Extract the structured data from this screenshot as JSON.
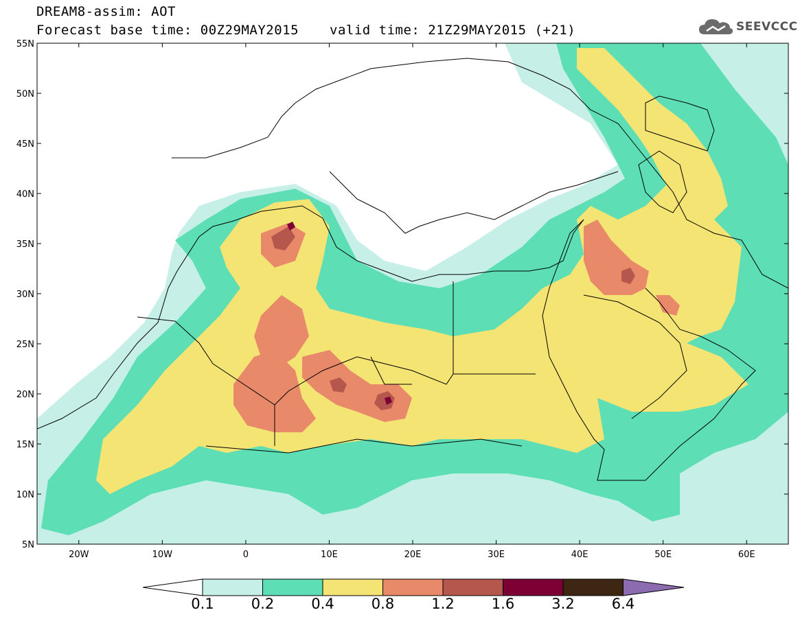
{
  "title": {
    "line1": "DREAM8-assim: AOT",
    "line2": "Forecast base time: 00Z29MAY2015",
    "valid": "valid time: 21Z29MAY2015 (+21)"
  },
  "logo": {
    "text": "SEEVCCC",
    "icon": "cloud-icon"
  },
  "map": {
    "lon_range": [
      -25,
      65
    ],
    "lat_range": [
      5,
      55
    ],
    "lat_ticks": [
      "5N",
      "10N",
      "15N",
      "20N",
      "25N",
      "30N",
      "35N",
      "40N",
      "45N",
      "50N",
      "55N"
    ],
    "lon_ticks": [
      "20W",
      "10W",
      "0",
      "10E",
      "20E",
      "30E",
      "40E",
      "50E",
      "60E"
    ],
    "levels": [
      {
        "min": 0.1,
        "color": "#c6efe7"
      },
      {
        "min": 0.2,
        "color": "#5ddeb4"
      },
      {
        "min": 0.4,
        "color": "#f4e474"
      },
      {
        "min": 0.8,
        "color": "#e8896a"
      },
      {
        "min": 1.2,
        "color": "#b5574d"
      },
      {
        "min": 1.6,
        "color": "#7c0033"
      },
      {
        "min": 3.2,
        "color": "#3d2612"
      },
      {
        "min": 6.4,
        "color": "#8c6bb1"
      }
    ]
  },
  "colorbar": {
    "labels": [
      "0.1",
      "0.2",
      "0.4",
      "0.8",
      "1.2",
      "1.6",
      "3.2",
      "6.4"
    ],
    "colors": [
      "#ffffff",
      "#c6efe7",
      "#5ddeb4",
      "#f4e474",
      "#e8896a",
      "#b5574d",
      "#7c0033",
      "#3d2612",
      "#8c6bb1"
    ]
  }
}
